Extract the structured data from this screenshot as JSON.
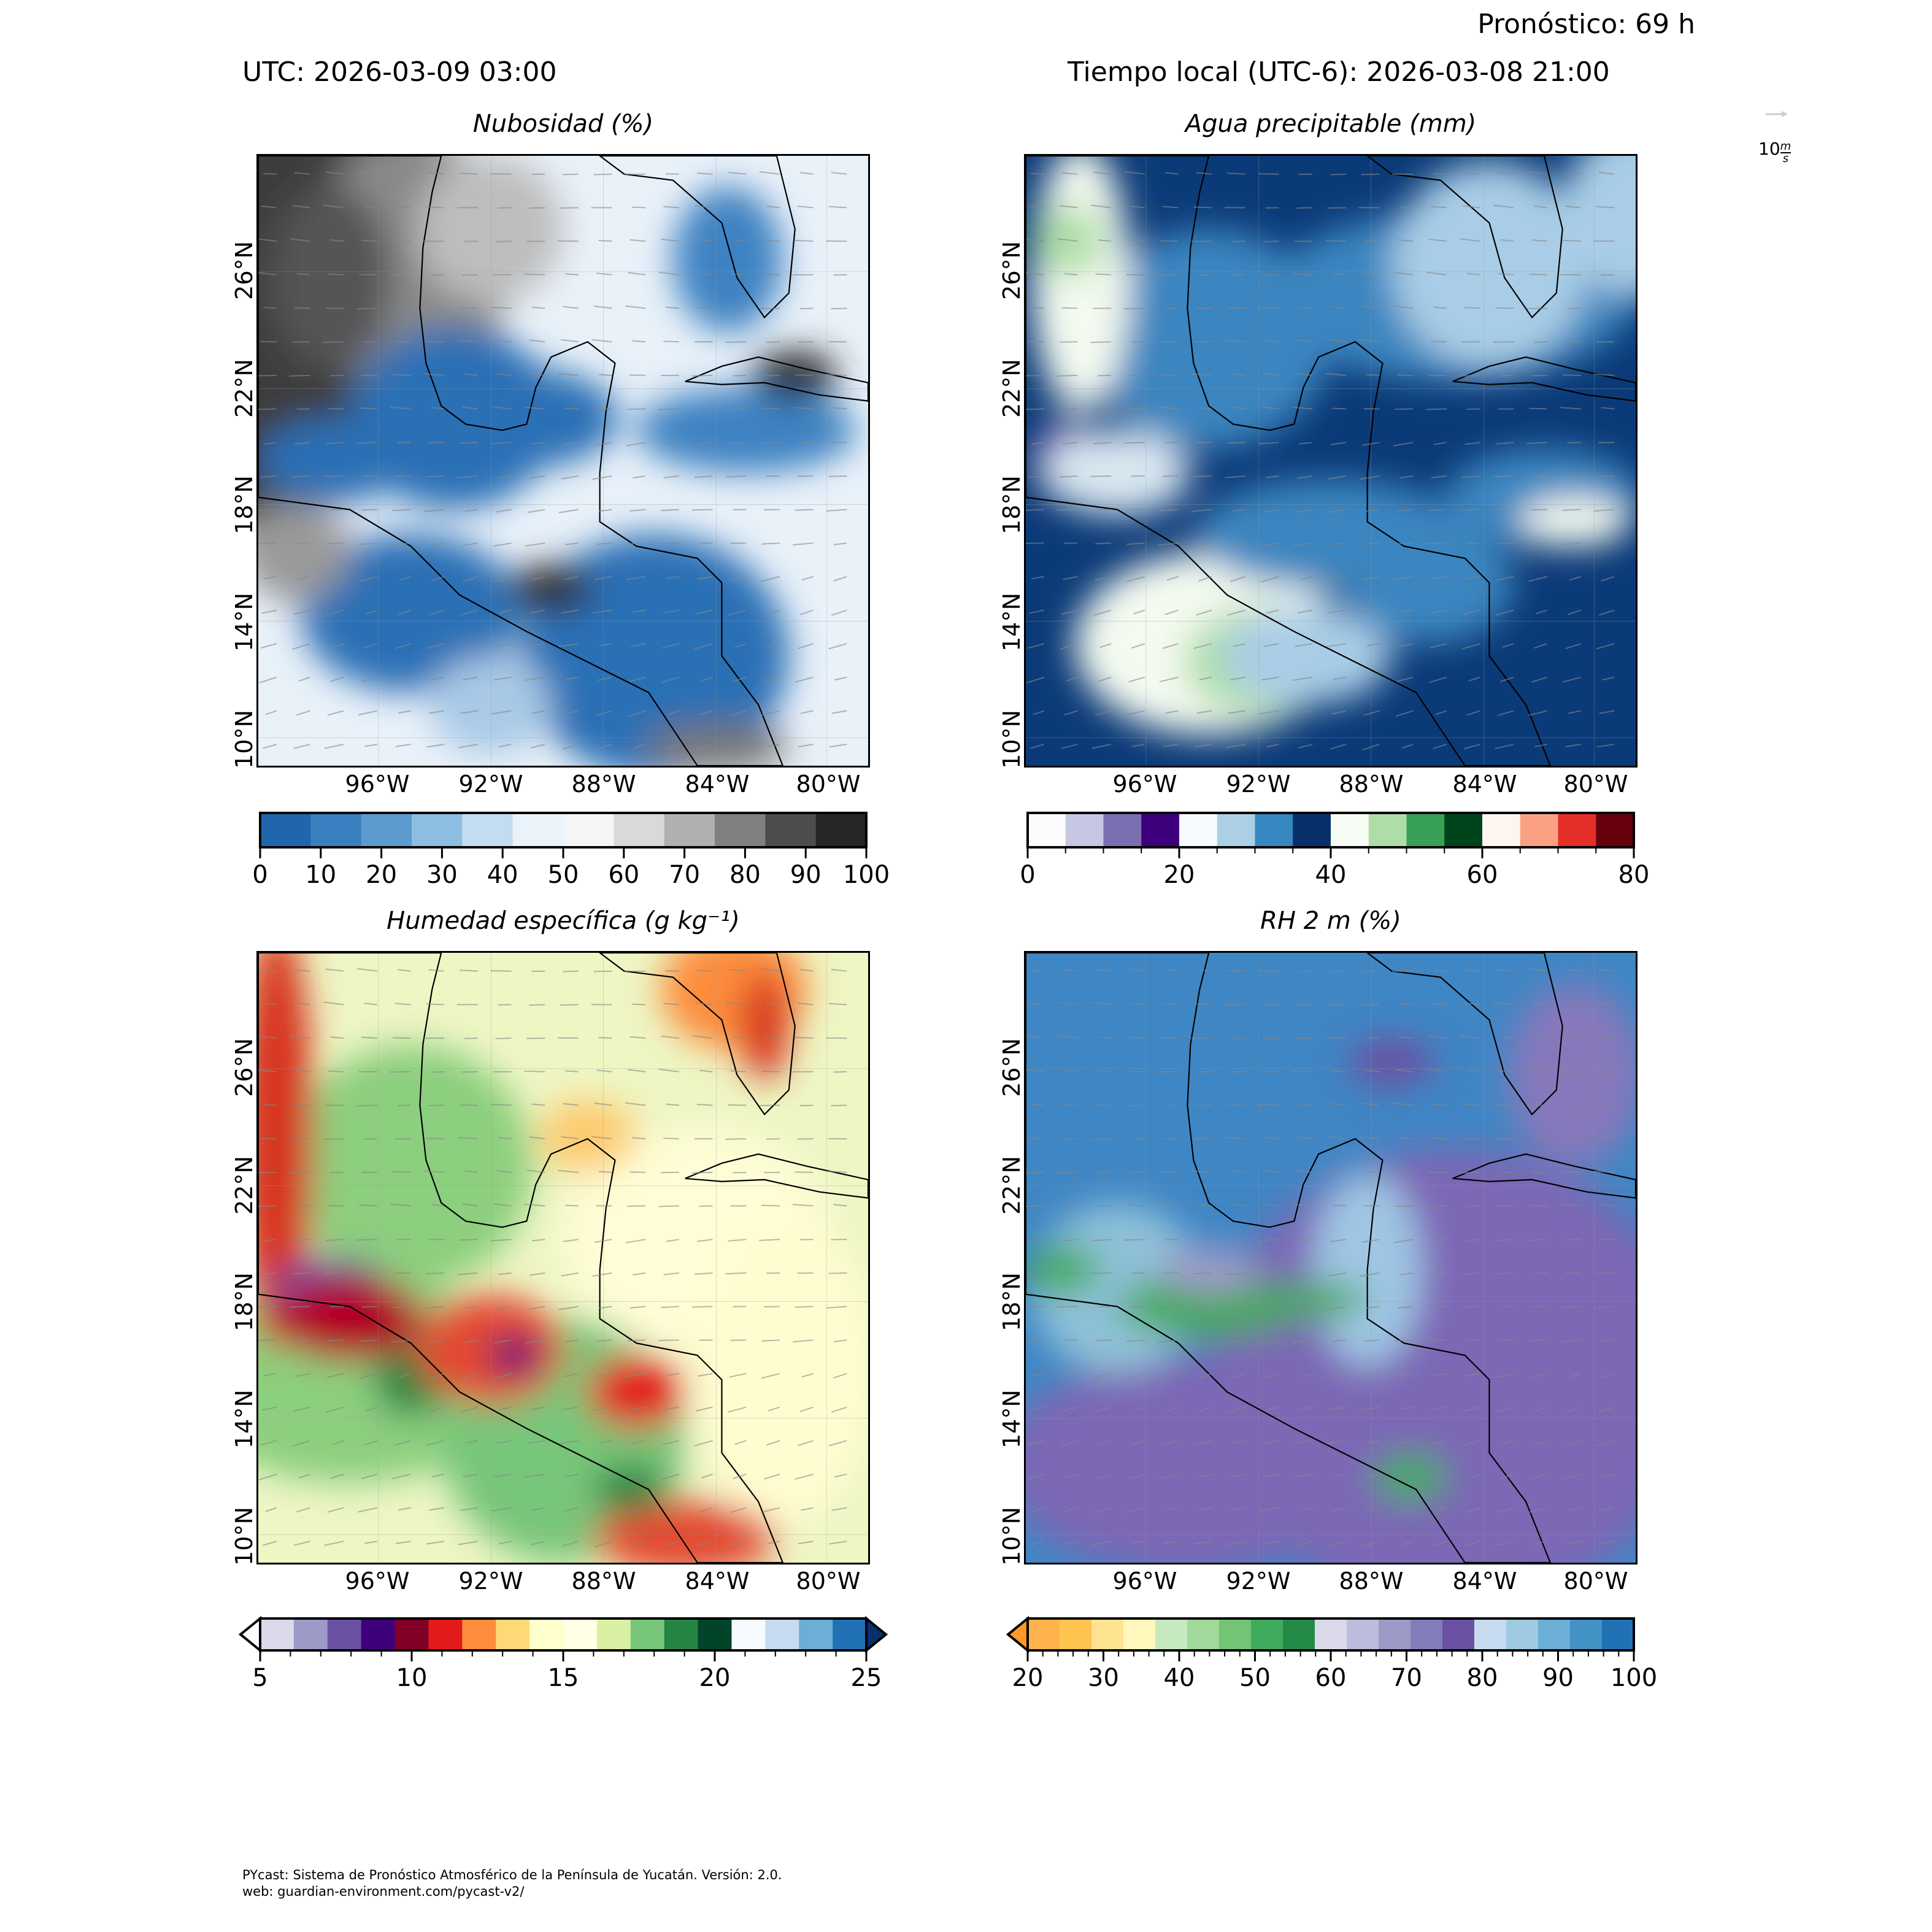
{
  "header": {
    "forecast": "Pronóstico: 69 h",
    "utc": "UTC:  2026-03-09 03:00",
    "local": "Tiempo local (UTC-6): 2026-03-08 21:00"
  },
  "quiver_key": {
    "label": "10",
    "unit_num": "m",
    "unit_den": "s",
    "arrow_color": "#cccccc"
  },
  "footer": {
    "line1": "PYcast: Sistema de Pronóstico Atmosférico de la Península de Yucatán. Versión: 2.0.",
    "line2": "web: guardian-environment.com/pycast-v2/"
  },
  "chart_data": [
    {
      "type": "heatmap",
      "title": "Nubosidad (%)",
      "lat_ticks": [
        "26°N",
        "22°N",
        "18°N",
        "14°N",
        "10°N"
      ],
      "lon_ticks": [
        "96°W",
        "92°W",
        "88°W",
        "84°W",
        "80°W"
      ],
      "colorbar": {
        "range": [
          0,
          100
        ],
        "labels": [
          "0",
          "10",
          "20",
          "30",
          "40",
          "50",
          "60",
          "70",
          "80",
          "90",
          "100"
        ],
        "colors": [
          "#2166ac",
          "#3a7fbf",
          "#5b9bd0",
          "#8dbde0",
          "#c4dcef",
          "#eaf2fa",
          "#f5f5f5",
          "#d9d9d9",
          "#b0b0b0",
          "#808080",
          "#4d4d4d",
          "#262626"
        ],
        "continuous": true,
        "extend": "none"
      }
    },
    {
      "type": "heatmap",
      "title": "Agua precipitable (mm)",
      "lat_ticks": [
        "26°N",
        "22°N",
        "18°N",
        "14°N",
        "10°N"
      ],
      "lon_ticks": [
        "96°W",
        "92°W",
        "88°W",
        "84°W",
        "80°W"
      ],
      "colorbar": {
        "range": [
          0,
          80
        ],
        "labels": [
          "0",
          "20",
          "40",
          "60",
          "80"
        ],
        "colors": [
          "#fcfbfd",
          "#c6c7e2",
          "#7b6fb1",
          "#3f007d",
          "#f7fbff",
          "#abd0e6",
          "#3787c0",
          "#08306b",
          "#f7fcf5",
          "#aedea7",
          "#37a055",
          "#00441b",
          "#fff5f0",
          "#fba183",
          "#e32f27",
          "#67000d"
        ],
        "continuous": false,
        "extend": "none"
      }
    },
    {
      "type": "heatmap",
      "title": "Humedad específica (g kg⁻¹)",
      "lat_ticks": [
        "26°N",
        "22°N",
        "18°N",
        "14°N",
        "10°N"
      ],
      "lon_ticks": [
        "96°W",
        "92°W",
        "88°W",
        "84°W",
        "80°W"
      ],
      "colorbar": {
        "range": [
          5,
          25
        ],
        "labels": [
          "5",
          "10",
          "15",
          "20",
          "25"
        ],
        "colors": [
          "#fcfbfd",
          "#dadaeb",
          "#9e9ac8",
          "#6a51a3",
          "#3f007d",
          "#800026",
          "#e31a1c",
          "#fd8d3c",
          "#fed976",
          "#ffffcc",
          "#ffffe5",
          "#d9f0a3",
          "#78c679",
          "#238443",
          "#004529",
          "#f7fbff",
          "#c6dbef",
          "#6baed6",
          "#2171b5",
          "#08306b"
        ],
        "continuous": false,
        "extend": "both"
      }
    },
    {
      "type": "heatmap",
      "title": "RH 2 m (%)",
      "lat_ticks": [
        "26°N",
        "22°N",
        "18°N",
        "14°N",
        "10°N"
      ],
      "lon_ticks": [
        "96°W",
        "92°W",
        "88°W",
        "84°W",
        "80°W"
      ],
      "colorbar": {
        "range": [
          20,
          100
        ],
        "labels": [
          "20",
          "30",
          "40",
          "50",
          "60",
          "70",
          "80",
          "90",
          "100"
        ],
        "colors": [
          "#fe9929",
          "#feb24c",
          "#fec44f",
          "#fee391",
          "#fff7bc",
          "#c7e9c0",
          "#a1d99b",
          "#74c476",
          "#41ab5d",
          "#238b45",
          "#dadaeb",
          "#bcbddc",
          "#9e9ac8",
          "#807dba",
          "#6a51a3",
          "#c6dbef",
          "#9ecae1",
          "#6baed6",
          "#4292c6",
          "#2171b5"
        ],
        "continuous": true,
        "extend": "min"
      }
    }
  ]
}
